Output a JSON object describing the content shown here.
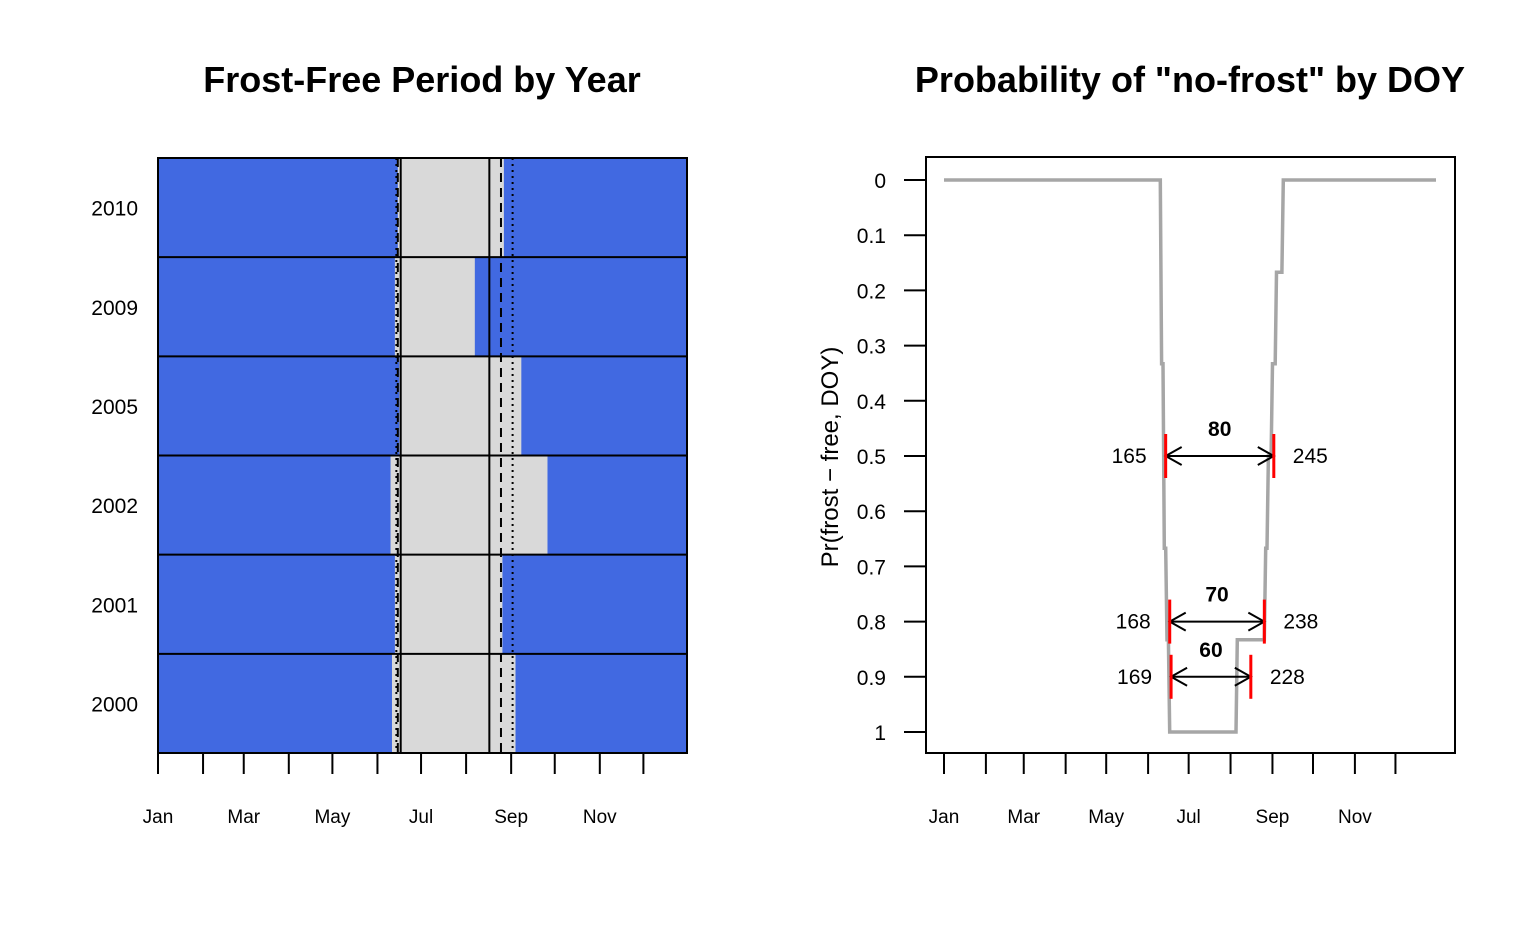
{
  "chart_data": [
    {
      "type": "heatmap",
      "title": "Frost-Free Period by Year",
      "xlabel": "",
      "ylabel": "",
      "x_unit": "day of year",
      "xlim": [
        1,
        365
      ],
      "month_ticks": [
        {
          "label": "Jan",
          "doy": 1
        },
        {
          "label": "Feb",
          "doy": 32
        },
        {
          "label": "Mar",
          "doy": 60
        },
        {
          "label": "Apr",
          "doy": 91
        },
        {
          "label": "May",
          "doy": 121
        },
        {
          "label": "Jun",
          "doy": 152
        },
        {
          "label": "Jul",
          "doy": 182
        },
        {
          "label": "Aug",
          "doy": 213
        },
        {
          "label": "Sep",
          "doy": 244
        },
        {
          "label": "Oct",
          "doy": 274
        },
        {
          "label": "Nov",
          "doy": 305
        },
        {
          "label": "Dec",
          "doy": 335
        }
      ],
      "month_labels_shown": [
        "Jan",
        "Mar",
        "May",
        "Jul",
        "Sep",
        "Nov"
      ],
      "rows": [
        {
          "year": "2010",
          "frost_free_start": 166,
          "frost_free_end": 239
        },
        {
          "year": "2009",
          "frost_free_start": 164,
          "frost_free_end": 219
        },
        {
          "year": "2005",
          "frost_free_start": 167,
          "frost_free_end": 251
        },
        {
          "year": "2002",
          "frost_free_start": 161,
          "frost_free_end": 269
        },
        {
          "year": "2001",
          "frost_free_start": 164,
          "frost_free_end": 238
        },
        {
          "year": "2000",
          "frost_free_start": 162,
          "frost_free_end": 247
        }
      ],
      "vertical_lines": [
        {
          "doy": 168,
          "style": "solid"
        },
        {
          "doy": 229,
          "style": "solid"
        },
        {
          "doy": 165,
          "style": "dotted"
        },
        {
          "doy": 245,
          "style": "dotted"
        },
        {
          "doy": 166,
          "style": "dashed"
        },
        {
          "doy": 237,
          "style": "dashed"
        }
      ],
      "colors": {
        "frost": "#4169E1",
        "frost_free": "#D9D9D9",
        "lines": "#000000"
      }
    },
    {
      "type": "line",
      "title": "Probability of \"no-frost\" by DOY",
      "xlabel": "",
      "ylabel": "Pr(frost − free, DOY)",
      "xlim": [
        1,
        365
      ],
      "ylim": [
        0,
        1
      ],
      "y_reversed": true,
      "y_ticks": [
        "0",
        "0.1",
        "0.2",
        "0.3",
        "0.4",
        "0.5",
        "0.6",
        "0.7",
        "0.8",
        "0.9",
        "1"
      ],
      "month_ticks": [
        {
          "label": "Jan",
          "doy": 1
        },
        {
          "label": "Feb",
          "doy": 32
        },
        {
          "label": "Mar",
          "doy": 60
        },
        {
          "label": "Apr",
          "doy": 91
        },
        {
          "label": "May",
          "doy": 121
        },
        {
          "label": "Jun",
          "doy": 152
        },
        {
          "label": "Jul",
          "doy": 182
        },
        {
          "label": "Aug",
          "doy": 213
        },
        {
          "label": "Sep",
          "doy": 244
        },
        {
          "label": "Oct",
          "doy": 274
        },
        {
          "label": "Nov",
          "doy": 305
        },
        {
          "label": "Dec",
          "doy": 335
        }
      ],
      "month_labels_shown": [
        "Jan",
        "Mar",
        "May",
        "Jul",
        "Sep",
        "Nov"
      ],
      "series": [
        {
          "color": "#A6A6A6",
          "points": [
            [
              1,
              0
            ],
            [
              161,
              0
            ],
            [
              162,
              0.333
            ],
            [
              163,
              0.333
            ],
            [
              164,
              0.667
            ],
            [
              165,
              0.667
            ],
            [
              166,
              0.833
            ],
            [
              167,
              0.833
            ],
            [
              168,
              1.0
            ],
            [
              217,
              1.0
            ],
            [
              218,
              0.833
            ],
            [
              221,
              0.833
            ],
            [
              222,
              0.833
            ],
            [
              238,
              0.833
            ],
            [
              239,
              0.667
            ],
            [
              240,
              0.667
            ],
            [
              241,
              0.5
            ],
            [
              243,
              0.5
            ],
            [
              244,
              0.333
            ],
            [
              246,
              0.333
            ],
            [
              247,
              0.167
            ],
            [
              251,
              0.167
            ],
            [
              252,
              0
            ],
            [
              365,
              0
            ]
          ]
        }
      ],
      "annotations": [
        {
          "level": 0.5,
          "start": 165,
          "end": 245,
          "length": 80,
          "start_label": "165",
          "end_label": "245",
          "length_label": "80"
        },
        {
          "level": 0.8,
          "start": 168,
          "end": 238,
          "length": 70,
          "start_label": "168",
          "end_label": "238",
          "length_label": "70"
        },
        {
          "level": 0.9,
          "start": 169,
          "end": 228,
          "length": 60,
          "start_label": "169",
          "end_label": "228",
          "length_label": "60"
        }
      ],
      "colors": {
        "curve": "#A6A6A6",
        "marker": "#FF0000",
        "arrow": "#000000"
      }
    }
  ]
}
